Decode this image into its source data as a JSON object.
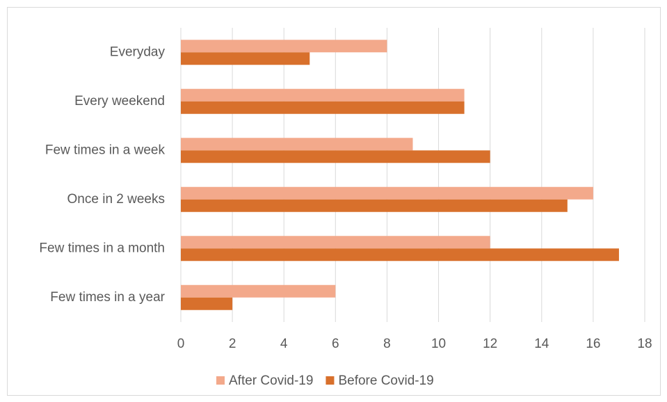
{
  "chart_data": {
    "type": "bar",
    "orientation": "horizontal",
    "categories": [
      "Everyday",
      "Every weekend",
      "Few times in a week",
      "Once in 2 weeks",
      "Few times in a month",
      "Few times in a year"
    ],
    "series": [
      {
        "name": "After Covid-19",
        "color": "#f3a98b",
        "values": [
          8,
          11,
          9,
          16,
          12,
          6
        ]
      },
      {
        "name": "Before Covid-19",
        "color": "#d8702c",
        "values": [
          5,
          11,
          12,
          15,
          17,
          2
        ]
      }
    ],
    "xlim": [
      0,
      18
    ],
    "xticks": [
      0,
      2,
      4,
      6,
      8,
      10,
      12,
      14,
      16,
      18
    ],
    "grid": true,
    "legend": "bottom"
  }
}
